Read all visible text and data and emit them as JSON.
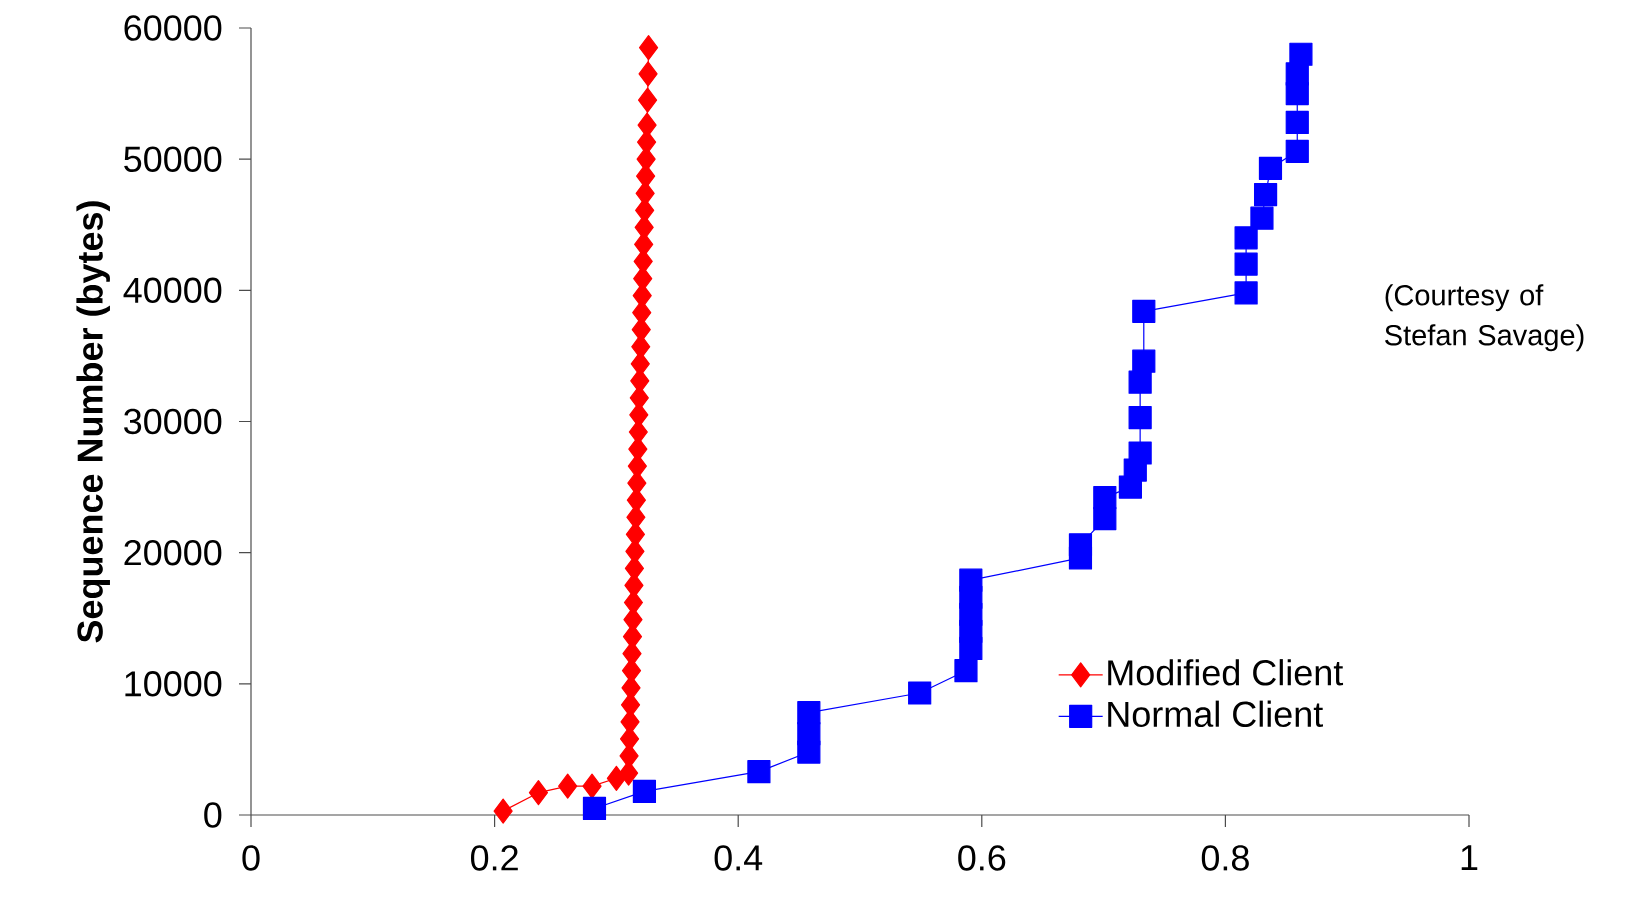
{
  "chart_data": {
    "type": "line",
    "ylabel": "Sequence  Number  (bytes)",
    "xlim": [
      0,
      1
    ],
    "ylim": [
      0,
      60000
    ],
    "xticks": [
      0,
      0.2,
      0.4,
      0.6,
      0.8,
      1
    ],
    "yticks": [
      0,
      10000,
      20000,
      30000,
      40000,
      50000,
      60000
    ],
    "grid": false,
    "legend": "bottom right",
    "line_style": "solid",
    "annotations": [
      "(Courtesy of Stefan Savage)"
    ],
    "series": [
      {
        "name": "Modified Client",
        "color": "#ff0000",
        "marker": "diamond",
        "x": [
          0.207,
          0.236,
          0.26,
          0.28,
          0.3,
          0.31,
          0.3104,
          0.3108,
          0.3112,
          0.3116,
          0.312,
          0.3124,
          0.3128,
          0.3132,
          0.3136,
          0.314,
          0.3144,
          0.3148,
          0.3152,
          0.3156,
          0.316,
          0.3164,
          0.3168,
          0.3172,
          0.3176,
          0.318,
          0.3184,
          0.3188,
          0.3192,
          0.3196,
          0.32,
          0.3204,
          0.3208,
          0.3212,
          0.3216,
          0.322,
          0.3224,
          0.3228,
          0.3232,
          0.3236,
          0.324,
          0.3244,
          0.3248,
          0.3252,
          0.3256,
          0.326,
          0.3264
        ],
        "values": [
          300,
          1700,
          2200,
          2200,
          2800,
          3200,
          4500,
          5800,
          7100,
          8400,
          9700,
          11000,
          12300,
          13600,
          14900,
          16200,
          17500,
          18800,
          20100,
          21400,
          22700,
          24000,
          25300,
          26600,
          27900,
          29200,
          30500,
          31800,
          33100,
          34400,
          35700,
          37000,
          38300,
          39600,
          40900,
          42200,
          43500,
          44800,
          46100,
          47400,
          48700,
          50000,
          51300,
          52600,
          54500,
          56500,
          58500
        ]
      },
      {
        "name": "Normal Client",
        "color": "#0000ff",
        "marker": "square",
        "x": [
          0.282,
          0.323,
          0.417,
          0.458,
          0.458,
          0.458,
          0.549,
          0.587,
          0.591,
          0.591,
          0.591,
          0.591,
          0.591,
          0.681,
          0.681,
          0.701,
          0.701,
          0.722,
          0.726,
          0.73,
          0.73,
          0.73,
          0.733,
          0.733,
          0.817,
          0.817,
          0.817,
          0.83,
          0.833,
          0.837,
          0.859,
          0.859,
          0.859,
          0.859,
          0.862
        ],
        "values": [
          500,
          1800,
          3300,
          4800,
          6200,
          7800,
          9300,
          11000,
          12700,
          14000,
          15300,
          16600,
          17900,
          19600,
          20600,
          22600,
          24200,
          25000,
          26300,
          27600,
          30300,
          33000,
          34600,
          38400,
          39800,
          42000,
          44000,
          45500,
          47300,
          49300,
          50600,
          52800,
          55000,
          56500,
          58000
        ]
      }
    ]
  }
}
